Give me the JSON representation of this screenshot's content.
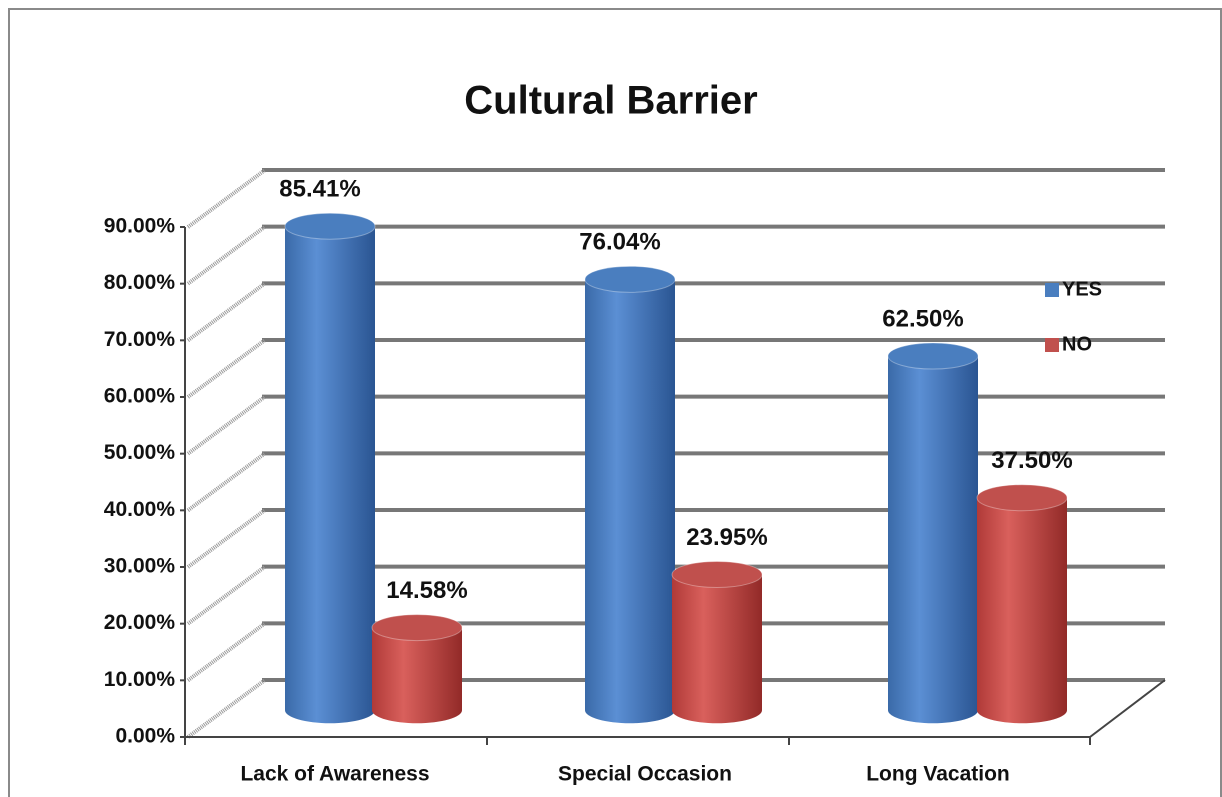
{
  "chart_data": {
    "type": "bar",
    "title": "Cultural Barrier",
    "categories": [
      "Lack of Awareness",
      "Special Occasion",
      "Long Vacation"
    ],
    "series": [
      {
        "name": "YES",
        "color": "#4a7ebf",
        "values": [
          85.41,
          76.04,
          62.5
        ],
        "value_labels": [
          "85.41%",
          "76.04%",
          "62.50%"
        ]
      },
      {
        "name": "NO",
        "color": "#c0504d",
        "values": [
          14.58,
          23.95,
          37.5
        ],
        "value_labels": [
          "14.58%",
          "23.95%",
          "37.50%"
        ]
      }
    ],
    "ylim": [
      0,
      90
    ],
    "yticks": [
      {
        "value": 0,
        "label": "0.00%"
      },
      {
        "value": 10,
        "label": "10.00%"
      },
      {
        "value": 20,
        "label": "20.00%"
      },
      {
        "value": 30,
        "label": "30.00%"
      },
      {
        "value": 40,
        "label": "40.00%"
      },
      {
        "value": 50,
        "label": "50.00%"
      },
      {
        "value": 60,
        "label": "60.00%"
      },
      {
        "value": 70,
        "label": "70.00%"
      },
      {
        "value": 80,
        "label": "80.00%"
      },
      {
        "value": 90,
        "label": "90.00%"
      }
    ],
    "grid": true,
    "legend": "right"
  }
}
